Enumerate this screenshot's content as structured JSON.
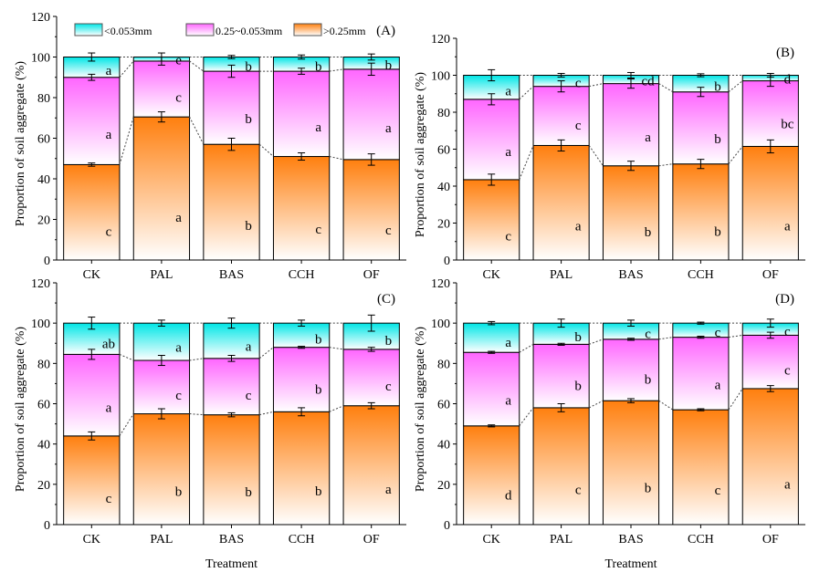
{
  "chart_data": {
    "type": "bar",
    "stacked": true,
    "ylabel": "Proportion of soil aggregate (%)",
    "xlabel": "Treatment",
    "ylim": [
      0,
      120
    ],
    "yticks": [
      "0",
      "20",
      "40",
      "60",
      "80",
      "100",
      "120"
    ],
    "categories": [
      "CK",
      "PAL",
      "BAS",
      "CCH",
      "OF"
    ],
    "legend": {
      "position": "top",
      "entries": [
        "<0.053mm",
        "0.25~0.053mm",
        ">0.25mm"
      ]
    },
    "colors": {
      "small": "#00e6e6",
      "mid": "#ff66ff",
      "large": "#ff7f0e"
    },
    "panels": [
      {
        "label": "(A)",
        "large": [
          47,
          70.5,
          57,
          51,
          49.5
        ],
        "mid": [
          43,
          27.5,
          36,
          42,
          44.5
        ],
        "small": [
          10,
          2,
          7,
          7,
          6
        ],
        "err_large": [
          0.8,
          2.5,
          3,
          1.8,
          2.8
        ],
        "err_mid": [
          1.5,
          2,
          3,
          1.5,
          3
        ],
        "err_small": [
          2,
          2,
          0.8,
          1,
          1.5
        ],
        "letters_small": [
          "a",
          "e",
          "b",
          "b",
          "b"
        ],
        "letters_mid": [
          "a",
          "c",
          "b",
          "a",
          "a"
        ],
        "letters_large": [
          "c",
          "a",
          "b",
          "c",
          "c"
        ]
      },
      {
        "label": "(B)",
        "large": [
          43.5,
          62,
          51,
          52,
          61.5
        ],
        "mid": [
          43.5,
          32,
          44.5,
          39,
          35.5
        ],
        "small": [
          13,
          6,
          4.5,
          9,
          3
        ],
        "err_large": [
          3,
          3,
          2.5,
          2.5,
          3.5
        ],
        "err_mid": [
          3,
          3,
          2.5,
          2.5,
          3
        ],
        "err_small": [
          3,
          1,
          1.5,
          0.8,
          1
        ],
        "letters_small": [
          "a",
          "c",
          "cd",
          "b",
          "d"
        ],
        "letters_mid": [
          "a",
          "c",
          "a",
          "b",
          "bc"
        ],
        "letters_large": [
          "c",
          "a",
          "b",
          "b",
          "a"
        ]
      },
      {
        "label": "(C)",
        "large": [
          44,
          55,
          54.5,
          56,
          59
        ],
        "mid": [
          40.5,
          26.5,
          28,
          32,
          28
        ],
        "small": [
          15.5,
          18.5,
          17.5,
          12,
          13
        ],
        "err_large": [
          2,
          2.5,
          1,
          2,
          1.5
        ],
        "err_mid": [
          2.5,
          2.5,
          1.5,
          0.5,
          1
        ],
        "err_small": [
          3,
          1.5,
          2.5,
          1.5,
          4
        ],
        "letters_small": [
          "ab",
          "a",
          "a",
          "b",
          "b"
        ],
        "letters_mid": [
          "a",
          "c",
          "c",
          "b",
          "c"
        ],
        "letters_large": [
          "c",
          "b",
          "b",
          "b",
          "a"
        ]
      },
      {
        "label": "(D)",
        "large": [
          49,
          58,
          61.5,
          57,
          67.5
        ],
        "mid": [
          36.5,
          31.5,
          30.5,
          36,
          26.5
        ],
        "small": [
          14.5,
          10.5,
          8,
          7,
          6
        ],
        "err_large": [
          0.5,
          2,
          1,
          0.5,
          1.5
        ],
        "err_mid": [
          0.5,
          0.5,
          0.5,
          0.5,
          1.5
        ],
        "err_small": [
          0.8,
          2,
          1.5,
          0.5,
          2
        ],
        "letters_small": [
          "a",
          "b",
          "c",
          "c",
          "c"
        ],
        "letters_mid": [
          "a",
          "b",
          "b",
          "a",
          "c"
        ],
        "letters_large": [
          "d",
          "c",
          "b",
          "c",
          "a"
        ]
      }
    ]
  }
}
